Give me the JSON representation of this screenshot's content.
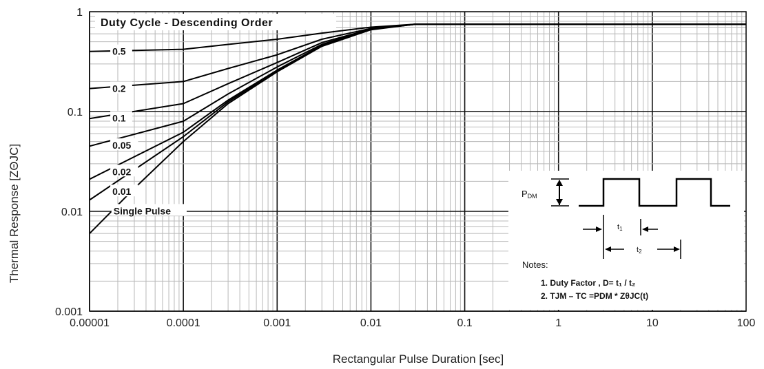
{
  "chart_data": {
    "type": "line",
    "title": "Duty Cycle - Descending Order",
    "xlabel": "Rectangular Pulse Duration [sec]",
    "ylabel": "Thermal Response [ZΘJC]",
    "x_scale": "log",
    "y_scale": "log",
    "xlim": [
      1e-05,
      100
    ],
    "ylim": [
      0.001,
      1
    ],
    "x_ticks": [
      "0.00001",
      "0.0001",
      "0.001",
      "0.01",
      "0.1",
      "1",
      "10",
      "100"
    ],
    "y_ticks": [
      "0.001",
      "0.01",
      "0.1",
      "1"
    ],
    "grid": true,
    "series": [
      {
        "name": "0.5",
        "x": [
          1e-05,
          0.0001,
          0.0003,
          0.001,
          0.003,
          0.01,
          0.03,
          100
        ],
        "y": [
          0.4,
          0.42,
          0.47,
          0.53,
          0.61,
          0.7,
          0.75,
          0.75
        ]
      },
      {
        "name": "0.2",
        "x": [
          1e-05,
          0.0001,
          0.0003,
          0.001,
          0.003,
          0.01,
          0.03,
          100
        ],
        "y": [
          0.17,
          0.2,
          0.27,
          0.37,
          0.53,
          0.68,
          0.75,
          0.75
        ]
      },
      {
        "name": "0.1",
        "x": [
          1e-05,
          0.0001,
          0.0003,
          0.001,
          0.003,
          0.01,
          0.03,
          100
        ],
        "y": [
          0.085,
          0.12,
          0.19,
          0.31,
          0.49,
          0.67,
          0.75,
          0.75
        ]
      },
      {
        "name": "0.05",
        "x": [
          1e-05,
          0.0001,
          0.0003,
          0.001,
          0.003,
          0.01,
          0.03,
          100
        ],
        "y": [
          0.045,
          0.08,
          0.15,
          0.28,
          0.47,
          0.67,
          0.75,
          0.75
        ]
      },
      {
        "name": "0.02",
        "x": [
          1e-05,
          0.0001,
          0.0003,
          0.001,
          0.003,
          0.01,
          0.03,
          100
        ],
        "y": [
          0.021,
          0.062,
          0.13,
          0.26,
          0.46,
          0.67,
          0.75,
          0.75
        ]
      },
      {
        "name": "0.01",
        "x": [
          1e-05,
          0.0001,
          0.0003,
          0.001,
          0.003,
          0.01,
          0.03,
          100
        ],
        "y": [
          0.013,
          0.056,
          0.125,
          0.255,
          0.455,
          0.665,
          0.75,
          0.75
        ]
      },
      {
        "name": "Single Pulse",
        "x": [
          1e-05,
          3e-05,
          0.0001,
          0.0003,
          0.001,
          0.003,
          0.01,
          0.03,
          100
        ],
        "y": [
          0.006,
          0.017,
          0.05,
          0.12,
          0.25,
          0.45,
          0.66,
          0.75,
          0.75
        ]
      }
    ]
  },
  "inset": {
    "pdm_label": "P",
    "pdm_sub": "DM",
    "t1_label": "t",
    "t1_sub": "1",
    "t2_label": "t",
    "t2_sub": "2",
    "notes_title": "Notes:",
    "note1": "1. Duty Factor ,  D= t₁ / t₂",
    "note2": "2. TJM – TC  =PDM * ZθJC(t)"
  }
}
